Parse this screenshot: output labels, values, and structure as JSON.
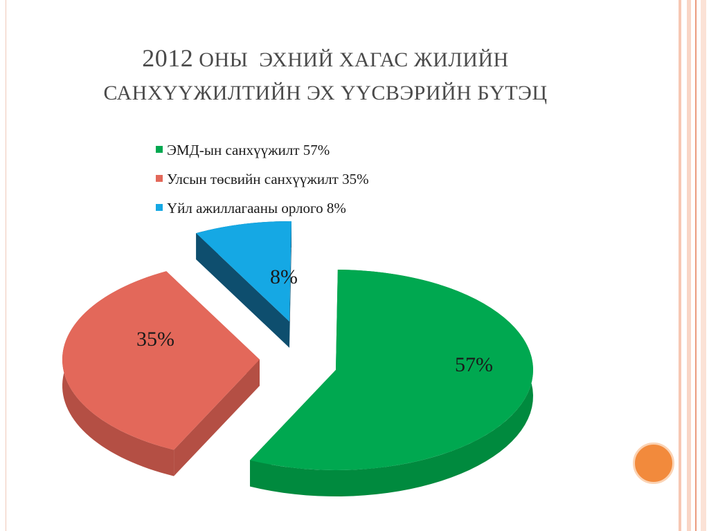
{
  "title": {
    "line1_year": "2012",
    "line1_rest": "ОНЫ  ЭХНИЙ ХАГАС ЖИЛИЙН",
    "line2": "САНХҮҮЖИЛТИЙН ЭХ ҮҮСВЭРИЙН БҮТЭЦ"
  },
  "chart_data": {
    "type": "pie",
    "style": "3d-exploded",
    "legend_position": "top",
    "slices": [
      {
        "name": "ЭМД-ын санхүүжилт 57%",
        "value": 57,
        "label": "57%",
        "color": "#00a850",
        "side_color": "#008a3e"
      },
      {
        "name": "Улсын төсвийн санхүүжилт 35%",
        "value": 35,
        "label": "35%",
        "color": "#e3685a",
        "side_color": "#b44f44"
      },
      {
        "name": "Үйл ажиллагааны орлого 8%",
        "value": 8,
        "label": "8%",
        "color": "#15a8e4",
        "side_color": "#0e4e6e"
      }
    ]
  },
  "decor": {
    "border_colors": [
      "#f7c7b3",
      "#ec9b7e"
    ],
    "circle_color": "#f28a3c"
  }
}
